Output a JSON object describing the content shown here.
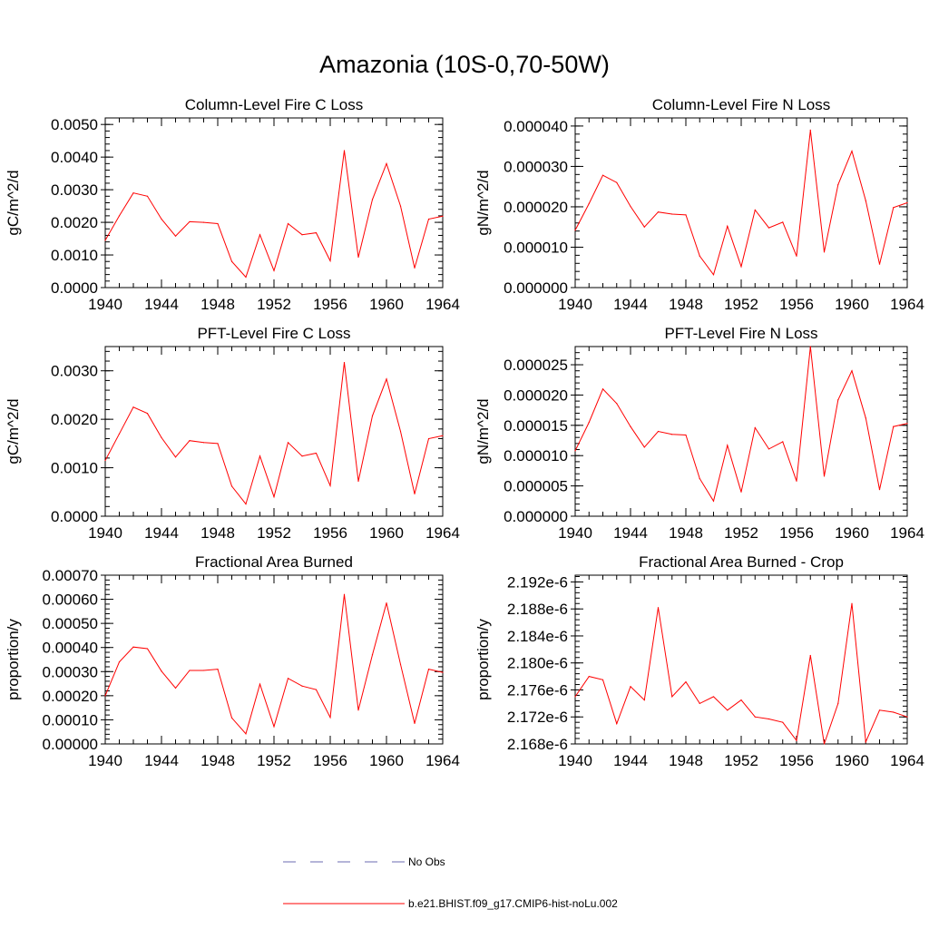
{
  "page": {
    "title": "Amazonia (10S-0,70-50W)"
  },
  "legend": {
    "items": [
      {
        "label": "No Obs",
        "color": "#6b6bb0",
        "dashed": true
      },
      {
        "label": "b.e21.BHIST.f09_g17.CMIP6-hist-noLu.002",
        "color": "#ff0000",
        "dashed": false
      }
    ]
  },
  "chart_data": [
    {
      "type": "line",
      "title": "Column-Level Fire C Loss",
      "ylabel": "gC/m^2/d",
      "xlim": [
        1940,
        1964
      ],
      "ylim": [
        0,
        0.0052
      ],
      "xticks": [
        1940,
        1944,
        1948,
        1952,
        1956,
        1960,
        1964
      ],
      "yticks": [
        "0.0000",
        "0.0010",
        "0.0020",
        "0.0030",
        "0.0040",
        "0.0050"
      ],
      "ytick_values": [
        0,
        0.001,
        0.002,
        0.003,
        0.004,
        0.005
      ],
      "series": [
        {
          "color": "#ff0000",
          "x": [
            1940,
            1941,
            1942,
            1943,
            1944,
            1945,
            1946,
            1947,
            1948,
            1949,
            1950,
            1951,
            1952,
            1953,
            1954,
            1955,
            1956,
            1957,
            1958,
            1959,
            1960,
            1961,
            1962,
            1963,
            1964
          ],
          "values": [
            0.00145,
            0.0022,
            0.0029,
            0.0028,
            0.0021,
            0.00158,
            0.00202,
            0.002,
            0.00196,
            0.0008,
            0.00032,
            0.00162,
            0.00052,
            0.00196,
            0.00162,
            0.00168,
            0.00082,
            0.0042,
            0.00093,
            0.0027,
            0.0038,
            0.0025,
            0.0006,
            0.0021,
            0.00219
          ]
        }
      ]
    },
    {
      "type": "line",
      "title": "Column-Level Fire N Loss",
      "ylabel": "gN/m^2/d",
      "xlim": [
        1940,
        1964
      ],
      "ylim": [
        0,
        4.2e-05
      ],
      "xticks": [
        1940,
        1944,
        1948,
        1952,
        1956,
        1960,
        1964
      ],
      "yticks": [
        "0.000000",
        "0.000010",
        "0.000020",
        "0.000030",
        "0.000040"
      ],
      "ytick_values": [
        0,
        1e-05,
        2e-05,
        3e-05,
        4e-05
      ],
      "series": [
        {
          "color": "#ff0000",
          "x": [
            1940,
            1941,
            1942,
            1943,
            1944,
            1945,
            1946,
            1947,
            1948,
            1949,
            1950,
            1951,
            1952,
            1953,
            1954,
            1955,
            1956,
            1957,
            1958,
            1959,
            1960,
            1961,
            1962,
            1963,
            1964
          ],
          "values": [
            1.42e-05,
            2.08e-05,
            2.78e-05,
            2.6e-05,
            2.01e-05,
            1.5e-05,
            1.87e-05,
            1.82e-05,
            1.8e-05,
            7.8e-06,
            3.2e-06,
            1.52e-05,
            5.2e-06,
            1.92e-05,
            1.48e-05,
            1.62e-05,
            7.8e-06,
            3.9e-05,
            8.8e-06,
            2.55e-05,
            3.38e-05,
            2.15e-05,
            5.8e-06,
            1.98e-05,
            2.1e-05
          ]
        }
      ]
    },
    {
      "type": "line",
      "title": "PFT-Level Fire C Loss",
      "ylabel": "gC/m^2/d",
      "xlim": [
        1940,
        1964
      ],
      "ylim": [
        0,
        0.0035
      ],
      "xticks": [
        1940,
        1944,
        1948,
        1952,
        1956,
        1960,
        1964
      ],
      "yticks": [
        "0.0000",
        "0.0010",
        "0.0020",
        "0.0030"
      ],
      "ytick_values": [
        0,
        0.001,
        0.002,
        0.003
      ],
      "series": [
        {
          "color": "#ff0000",
          "x": [
            1940,
            1941,
            1942,
            1943,
            1944,
            1945,
            1946,
            1947,
            1948,
            1949,
            1950,
            1951,
            1952,
            1953,
            1954,
            1955,
            1956,
            1957,
            1958,
            1959,
            1960,
            1961,
            1962,
            1963,
            1964
          ],
          "values": [
            0.00115,
            0.0017,
            0.00225,
            0.00212,
            0.00162,
            0.00122,
            0.00156,
            0.00152,
            0.0015,
            0.00062,
            0.00025,
            0.00124,
            0.0004,
            0.00152,
            0.00124,
            0.0013,
            0.00063,
            0.00317,
            0.00072,
            0.00207,
            0.00283,
            0.00175,
            0.00046,
            0.0016,
            0.00166
          ]
        }
      ]
    },
    {
      "type": "line",
      "title": "PFT-Level Fire N Loss",
      "ylabel": "gN/m^2/d",
      "xlim": [
        1940,
        1964
      ],
      "ylim": [
        0,
        2.8e-05
      ],
      "xticks": [
        1940,
        1944,
        1948,
        1952,
        1956,
        1960,
        1964
      ],
      "yticks": [
        "0.000000",
        "0.000005",
        "0.000010",
        "0.000015",
        "0.000020",
        "0.000025"
      ],
      "ytick_values": [
        0,
        5e-06,
        1e-05,
        1.5e-05,
        2e-05,
        2.5e-05
      ],
      "series": [
        {
          "color": "#ff0000",
          "x": [
            1940,
            1941,
            1942,
            1943,
            1944,
            1945,
            1946,
            1947,
            1948,
            1949,
            1950,
            1951,
            1952,
            1953,
            1954,
            1955,
            1956,
            1957,
            1958,
            1959,
            1960,
            1961,
            1962,
            1963,
            1964
          ],
          "values": [
            1.08e-05,
            1.55e-05,
            2.1e-05,
            1.86e-05,
            1.48e-05,
            1.14e-05,
            1.4e-05,
            1.35e-05,
            1.34e-05,
            6.2e-06,
            2.5e-06,
            1.17e-05,
            4e-06,
            1.46e-05,
            1.11e-05,
            1.23e-05,
            5.8e-06,
            2.8e-05,
            6.6e-06,
            1.92e-05,
            2.4e-05,
            1.62e-05,
            4.4e-06,
            1.48e-05,
            1.53e-05
          ]
        }
      ]
    },
    {
      "type": "line",
      "title": "Fractional Area Burned",
      "ylabel": "proportion/y",
      "xlim": [
        1940,
        1964
      ],
      "ylim": [
        0,
        0.0007
      ],
      "xticks": [
        1940,
        1944,
        1948,
        1952,
        1956,
        1960,
        1964
      ],
      "yticks": [
        "0.00000",
        "0.00010",
        "0.00020",
        "0.00030",
        "0.00040",
        "0.00050",
        "0.00060",
        "0.00070"
      ],
      "ytick_values": [
        0,
        0.0001,
        0.0002,
        0.0003,
        0.0004,
        0.0005,
        0.0006,
        0.0007
      ],
      "series": [
        {
          "color": "#ff0000",
          "x": [
            1940,
            1941,
            1942,
            1943,
            1944,
            1945,
            1946,
            1947,
            1948,
            1949,
            1950,
            1951,
            1952,
            1953,
            1954,
            1955,
            1956,
            1957,
            1958,
            1959,
            1960,
            1961,
            1962,
            1963,
            1964
          ],
          "values": [
            0.0002,
            0.00034,
            0.000402,
            0.000395,
            0.000302,
            0.000232,
            0.000305,
            0.000305,
            0.00031,
            0.000108,
            4.2e-05,
            0.000248,
            7.2e-05,
            0.000272,
            0.00024,
            0.000225,
            0.00011,
            0.00062,
            0.00014,
            0.00037,
            0.000585,
            0.00033,
            8.5e-05,
            0.00031,
            0.000297
          ]
        }
      ]
    },
    {
      "type": "line",
      "title": "Fractional Area Burned - Crop",
      "ylabel": "proportion/y",
      "xlim": [
        1940,
        1964
      ],
      "ylim": [
        2.168e-06,
        2.193e-06
      ],
      "xticks": [
        1940,
        1944,
        1948,
        1952,
        1956,
        1960,
        1964
      ],
      "yticks": [
        "2.168e-6",
        "2.172e-6",
        "2.176e-6",
        "2.180e-6",
        "2.184e-6",
        "2.188e-6",
        "2.192e-6"
      ],
      "ytick_values": [
        2.168e-06,
        2.172e-06,
        2.176e-06,
        2.18e-06,
        2.184e-06,
        2.188e-06,
        2.192e-06
      ],
      "series": [
        {
          "color": "#ff0000",
          "x": [
            1940,
            1941,
            1942,
            1943,
            1944,
            1945,
            1946,
            1947,
            1948,
            1949,
            1950,
            1951,
            1952,
            1953,
            1954,
            1955,
            1956,
            1957,
            1958,
            1959,
            1960,
            1961,
            1962,
            1963,
            1964
          ],
          "values": [
            2.175e-06,
            2.178e-06,
            2.1775e-06,
            2.171e-06,
            2.1765e-06,
            2.1745e-06,
            2.1882e-06,
            2.175e-06,
            2.1772e-06,
            2.174e-06,
            2.175e-06,
            2.173e-06,
            2.1745e-06,
            2.172e-06,
            2.1717e-06,
            2.1712e-06,
            2.1685e-06,
            2.1811e-06,
            2.168e-06,
            2.174e-06,
            2.1888e-06,
            2.1683e-06,
            2.173e-06,
            2.1727e-06,
            2.172e-06
          ]
        }
      ]
    }
  ]
}
